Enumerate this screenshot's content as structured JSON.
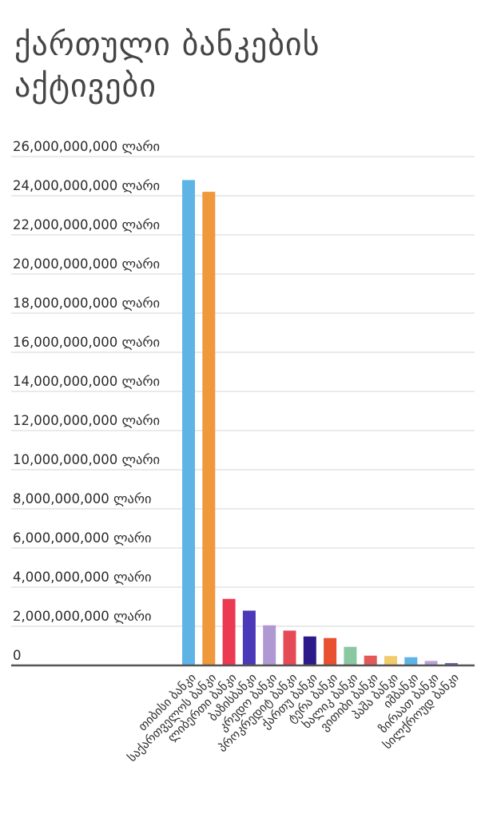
{
  "chart_data": {
    "type": "bar",
    "title": "ქართული ბანკების აქტივები",
    "xlabel": "",
    "ylabel": "",
    "ylim": [
      0,
      26000000000
    ],
    "grid": true,
    "y_ticks": [
      "0",
      "2,000,000,000 ლარი",
      "4,000,000,000 ლარი",
      "6,000,000,000 ლარი",
      "8,000,000,000 ლარი",
      "10,000,000,000 ლარი",
      "12,000,000,000 ლარი",
      "14,000,000,000 ლარი",
      "16,000,000,000 ლარი",
      "18,000,000,000 ლარი",
      "20,000,000,000 ლარი",
      "22,000,000,000 ლარი",
      "24,000,000,000 ლარი",
      "26,000,000,000 ლარი"
    ],
    "y_tick_values": [
      0,
      2000000000,
      4000000000,
      6000000000,
      8000000000,
      10000000000,
      12000000000,
      14000000000,
      16000000000,
      18000000000,
      20000000000,
      22000000000,
      24000000000,
      26000000000
    ],
    "categories": [
      "თიბისი ბანკი",
      "საქართველოს ბანკი",
      "ლიბერთი ბანკი",
      "ბაზისბანკი",
      "კრედო ბანკი",
      "პროკრედიტ ბანკი",
      "ქართუ ბანკი",
      "ტერა ბანკი",
      "ხალიკ ბანკი",
      "ვითიბი ბანკი",
      "პაშა ბანკი",
      "იშბანკი",
      "ზირაათ ბანკი",
      "სილქროუდ ბანკი"
    ],
    "values": [
      24800000000,
      24200000000,
      3400000000,
      2800000000,
      2050000000,
      1780000000,
      1480000000,
      1400000000,
      950000000,
      500000000,
      480000000,
      420000000,
      230000000,
      120000000
    ],
    "colors": [
      "#5fb4e6",
      "#f0983c",
      "#ec3a52",
      "#4a39b8",
      "#b099d2",
      "#e44b57",
      "#2d1a8a",
      "#e9502f",
      "#8ac8a1",
      "#e45858",
      "#f2cc6a",
      "#5fb4e6",
      "#b9a2d8",
      "#6a62b8"
    ]
  }
}
